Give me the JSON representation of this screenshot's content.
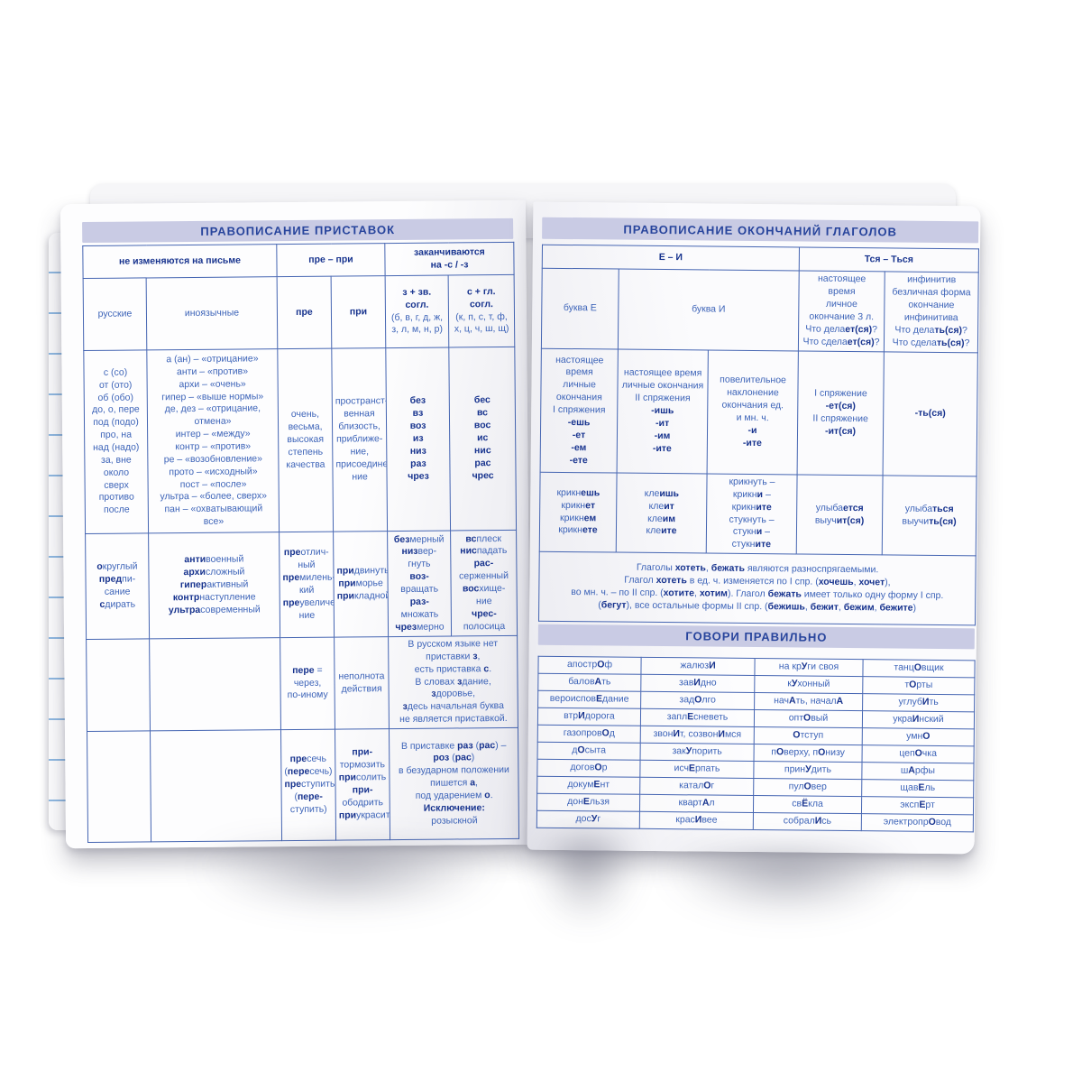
{
  "colors": {
    "accent_blue": "#3c63b8",
    "navy_bold": "#17338e",
    "border_blue": "#4565b2",
    "header_bg": "#c9cbe4"
  },
  "left_page": {
    "title": "ПРАВОПИСАНИЕ ПРИСТАВОК",
    "group_headers": [
      "не изменяются на письме",
      "пре – при",
      "заканчиваются<br>на -с / -з"
    ],
    "col_headers": [
      "русские",
      "иноязычные",
      "пре",
      "при",
      "<b>з + зв.<br>согл.</b><br>(б, в, г, д, ж,<br>з, л, м, н, р)",
      "<b>с + гл.<br>согл.</b><br>(к, п, с, т, ф,<br>х, ц, ч, ш, щ)"
    ],
    "row1": [
      "с (со)<br>от (ото)<br>об (обо)<br>до, о, пере<br>под (подо)<br>про, на<br>над (надо)<br>за, вне<br>около<br>сверх<br>противо<br>после",
      "а (ан) – «отрицание»<br>анти – «против»<br>архи – «очень»<br>гипер – «выше нормы»<br>де, дез – «отрицание,<br>отмена»<br>интер – «между»<br>контр – «против»<br>ре – «возобновление»<br>прото – «исходный»<br>пост – «после»<br>ультра – «более, сверх»<br>пан – «охватывающий<br>все»",
      "очень,<br>весьма,<br>высокая<br>степень<br>качества",
      "пространст-<br>венная<br>близость,<br>приближе-<br>ние,<br>присоедине-<br>ние",
      "<b>без<br>вз<br>воз<br>из<br>низ<br>раз<br>чрез</b>",
      "<b>бес<br>вс<br>вос<br>ис<br>нис<br>рас<br>чрес</b>"
    ],
    "row2": [
      "<b>о</b>круглый<br><b>пред</b>пи-<br>сание<br><b>с</b>дирать",
      "<b>анти</b>военный<br><b>архи</b>сложный<br><b>гипер</b>активный<br><b>контр</b>наступление<br><b>ультра</b>современный",
      "<b>пре</b>отлич-<br>ный<br><b>пре</b>милень-<br>кий<br><b>пре</b>увеличе-<br>ние",
      "<b>при</b>двинуть<br><b>при</b>морье<br><b>при</b>кладной",
      "<b>без</b>мерный<br><b>низ</b>вер-<br>гнуть<br><b>воз-</b><br>вращать<br><b>раз-</b><br>множать<br><b>чрез</b>мерно",
      "<b>вс</b>плеск<br><b>нис</b>падать<br><b>рас-</b><br>серженный<br><b>вос</b>хище-<br>ние<br><b>чрес-</b><br>полосица"
    ],
    "row3": [
      "",
      "",
      "<b>пере</b> =<br>через,<br>по-иному",
      "неполнота<br>действия",
      "В русском языке нет<br>приставки <b>з</b>,<br>есть приставка <b>с</b>.<br>В словах <b>з</b>дание,<br><b>з</b>доровье,<br><b>з</b>десь начальная буква<br>не является приставкой."
    ],
    "row4": [
      "",
      "",
      "<b>пре</b>сечь<br>(<b>пере</b>сечь)<br><b>пре</b>ступить<br>(<b>пере-</b><br>ступить)",
      "<b>при-</b><br>тормозить<br><b>при</b>солить<br><b>при-</b><br>ободрить<br><b>при</b>украсить",
      "В приставке <b>раз</b> (<b>рас</b>) –<br><b>роз</b> (<b>рас</b>)<br>в безударном положении<br>пишется <b>а</b>,<br>под ударением <b>о</b>.<br><b>Исключение:</b><br>розыскной"
    ]
  },
  "right_page": {
    "title": "ПРАВОПИСАНИЕ ОКОНЧАНИЙ ГЛАГОЛОВ",
    "group_headers": [
      "Е – И",
      "Тся – Ться"
    ],
    "col_headers": [
      "буква Е",
      "буква И",
      "настоящее<br>время<br>личное<br>окончание 3 л.<br>Что дела<b>ет(ся)</b>?<br>Что сдела<b>ет(ся)</b>?",
      "инфинитив<br>безличная форма<br>окончание<br>инфинитива<br>Что дела<b>ть(ся)</b>?<br>Что сдела<b>ть(ся)</b>?"
    ],
    "row1": [
      "настоящее<br>время<br>личные<br>окончания<br>I спряжения<br><b>-ешь<br>-ет<br>-ем<br>-ете</b>",
      "настоящее время<br>личные окончания<br>II спряжения<br><b>-ишь<br>-ит<br>-им<br>-ите</b>",
      "повелительное<br>наклонение<br>окончания ед.<br>и мн. ч.<br><b>-и<br>-ите</b>",
      "I спряжение<br><b>-ет(ся)</b><br>II спряжение<br><b>-ит(ся)</b>",
      "<b>-ть(ся)</b>"
    ],
    "row2": [
      "крикн<b>ешь</b><br>крикн<b>ет</b><br>крикн<b>ем</b><br>крикн<b>ете</b>",
      "кле<b>ишь</b><br>кле<b>ит</b><br>кле<b>им</b><br>кле<b>ите</b>",
      "крикнуть –<br>крикн<b>и</b> –<br>крикн<b>ите</b><br>стукнуть –<br>стукн<b>и</b> –<br>стукн<b>ите</b>",
      "улыба<b>ется</b><br>выуч<b>ит(ся)</b>",
      "улыба<b>ться</b><br>выучи<b>ть(ся)</b>"
    ],
    "note": "Глаголы <b>хотеть</b>, <b>бежать</b> являются разноспрягаемыми.<br>Глагол <b>хотеть</b> в ед. ч. изменяется по I спр. (<b>хочешь</b>, <b>хочет</b>),<br>во мн. ч. – по II спр. (<b>хотите</b>, <b>хотим</b>). Глагол <b>бежать</b> имеет только одну форму I спр.<br>(<b>бегут</b>), все остальные формы II спр. (<b>бежишь</b>, <b>бежит</b>, <b>бежим</b>, <b>бежите</b>)",
    "speak_title": "ГОВОРИ ПРАВИЛЬНО",
    "words": [
      [
        "апостр<b>О</b>ф",
        "жалюз<b>И</b>",
        "на кр<b>У</b>ги своя",
        "танц<b>О</b>вщик"
      ],
      [
        "балов<b>А</b>ть",
        "зав<b>И</b>дно",
        "к<b>У</b>хонный",
        "т<b>О</b>рты"
      ],
      [
        "вероиспов<b>Е</b>дание",
        "зад<b>О</b>лго",
        "нач<b>А</b>ть, начал<b>А</b>",
        "углуб<b>И</b>ть"
      ],
      [
        "втр<b>И</b>дорога",
        "запл<b>Е</b>сневеть",
        "опт<b>О</b>вый",
        "укра<b>И</b>нский"
      ],
      [
        "газопров<b>О</b>д",
        "звон<b>И</b>т, созвон<b>И</b>мся",
        "<b>О</b>тступ",
        "умн<b>О</b>"
      ],
      [
        "д<b>О</b>сыта",
        "зак<b>У</b>порить",
        "п<b>О</b>верху, п<b>О</b>низу",
        "цеп<b>О</b>чка"
      ],
      [
        "догов<b>О</b>р",
        "исч<b>Е</b>рпать",
        "прин<b>У</b>дить",
        "ш<b>А</b>рфы"
      ],
      [
        "докум<b>Е</b>нт",
        "катал<b>О</b>г",
        "пул<b>О</b>вер",
        "щав<b>Е</b>ль"
      ],
      [
        "дон<b>Е</b>льзя",
        "кварт<b>А</b>л",
        "св<b>Ё</b>кла",
        "эксп<b>Е</b>рт"
      ],
      [
        "дос<b>У</b>г",
        "крас<b>И</b>вее",
        "собрал<b>И</b>сь",
        "электропр<b>О</b>вод"
      ]
    ]
  }
}
